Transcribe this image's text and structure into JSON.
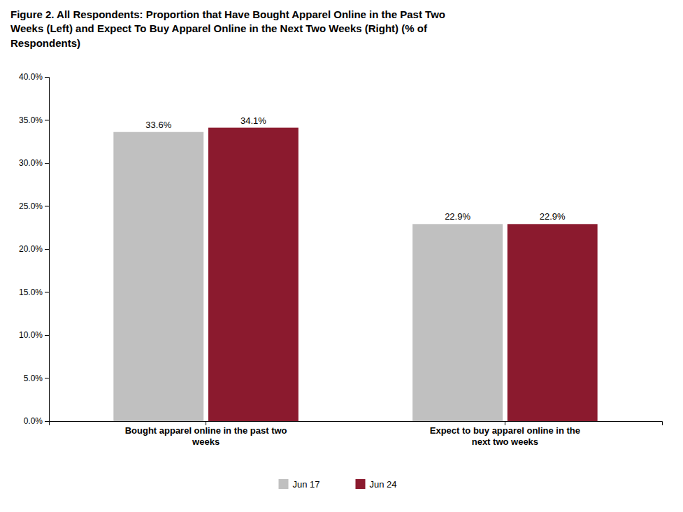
{
  "chart_data": {
    "type": "bar",
    "title": "Figure 2. All Respondents: Proportion that Have Bought Apparel Online in the Past Two\nWeeks (Left) and Expect To Buy Apparel Online in the Next Two Weeks (Right) (% of\nRespondents)",
    "categories": [
      "Bought apparel online in the past two\nweeks",
      "Expect to buy apparel online in the\nnext two weeks"
    ],
    "series": [
      {
        "name": "Jun 17",
        "color": "#C0C0C0",
        "values": [
          33.6,
          22.9
        ],
        "value_labels": [
          "33.6%",
          "22.9%"
        ]
      },
      {
        "name": "Jun 24",
        "color": "#8B1A2E",
        "values": [
          34.1,
          22.9
        ],
        "value_labels": [
          "34.1%",
          "22.9%"
        ]
      }
    ],
    "ylim": [
      0,
      40
    ],
    "yticks": [
      {
        "value": 0,
        "label": "0.0%"
      },
      {
        "value": 5,
        "label": "5.0%"
      },
      {
        "value": 10,
        "label": "10.0%"
      },
      {
        "value": 15,
        "label": "15.0%"
      },
      {
        "value": 20,
        "label": "20.0%"
      },
      {
        "value": 25,
        "label": "25.0%"
      },
      {
        "value": 30,
        "label": "30.0%"
      },
      {
        "value": 35,
        "label": "35.0%"
      },
      {
        "value": 40,
        "label": "40.0%"
      }
    ],
    "grid": false,
    "legend": "bottom",
    "data_labels": true
  }
}
